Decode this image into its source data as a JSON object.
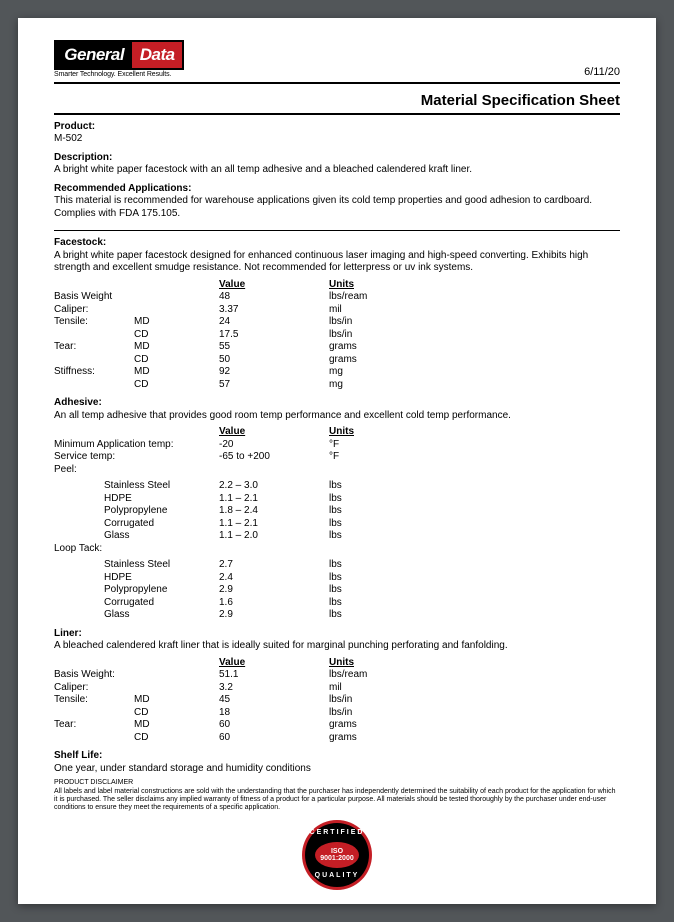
{
  "logo": {
    "left": "General",
    "right": "Data",
    "tagline": "Smarter Technology. Excellent Results."
  },
  "date": "6/11/20",
  "title": "Material Specification Sheet",
  "product": {
    "label": "Product:",
    "value": "M-502"
  },
  "description": {
    "label": "Description:",
    "text": "A bright white paper facestock with an all temp adhesive and a bleached calendered kraft liner."
  },
  "applications": {
    "label": "Recommended Applications:",
    "text": "This material is recommended for warehouse applications given its cold temp properties and good adhesion to cardboard. Complies with FDA 175.105."
  },
  "facestock": {
    "label": "Facestock:",
    "text": "A bright white paper facestock designed for enhanced continuous laser imaging and high-speed converting. Exhibits high strength and excellent smudge resistance. Not recommended for letterpress or uv ink systems.",
    "headers": {
      "value": "Value",
      "units": "Units"
    },
    "rows": [
      {
        "lbl": "Basis Weight",
        "sub": "",
        "val": "48",
        "unit": "lbs/ream"
      },
      {
        "lbl": "Caliper:",
        "sub": "",
        "val": "3.37",
        "unit": "mil"
      },
      {
        "lbl": "Tensile:",
        "sub": "MD",
        "val": "24",
        "unit": "lbs/in"
      },
      {
        "lbl": "",
        "sub": "CD",
        "val": "17.5",
        "unit": "lbs/in"
      },
      {
        "lbl": "Tear:",
        "sub": "MD",
        "val": "55",
        "unit": "grams"
      },
      {
        "lbl": "",
        "sub": "CD",
        "val": "50",
        "unit": "grams"
      },
      {
        "lbl": "Stiffness:",
        "sub": "MD",
        "val": "92",
        "unit": "mg"
      },
      {
        "lbl": "",
        "sub": "CD",
        "val": "57",
        "unit": "mg"
      }
    ]
  },
  "adhesive": {
    "label": "Adhesive:",
    "text": "An all temp adhesive that provides good room temp performance and excellent cold temp performance.",
    "headers": {
      "value": "Value",
      "units": "Units"
    },
    "rows": [
      {
        "lbl": "Minimum Application temp:",
        "val": "-20",
        "unit": "°F"
      },
      {
        "lbl": "Service temp:",
        "val": "-65 to +200",
        "unit": "°F"
      }
    ],
    "peel_label": "Peel:",
    "peel": [
      {
        "lbl": "Stainless Steel",
        "val": "2.2 – 3.0",
        "unit": "lbs"
      },
      {
        "lbl": "HDPE",
        "val": "1.1 – 2.1",
        "unit": "lbs"
      },
      {
        "lbl": "Polypropylene",
        "val": "1.8 – 2.4",
        "unit": "lbs"
      },
      {
        "lbl": "Corrugated",
        "val": "1.1 – 2.1",
        "unit": "lbs"
      },
      {
        "lbl": "Glass",
        "val": "1.1 – 2.0",
        "unit": "lbs"
      }
    ],
    "loop_label": "Loop Tack:",
    "loop": [
      {
        "lbl": "Stainless Steel",
        "val": "2.7",
        "unit": "lbs"
      },
      {
        "lbl": "HDPE",
        "val": "2.4",
        "unit": "lbs"
      },
      {
        "lbl": "Polypropylene",
        "val": "2.9",
        "unit": "lbs"
      },
      {
        "lbl": "Corrugated",
        "val": "1.6",
        "unit": "lbs"
      },
      {
        "lbl": "Glass",
        "val": "2.9",
        "unit": "lbs"
      }
    ]
  },
  "liner": {
    "label": "Liner:",
    "text": "A bleached calendered kraft liner that is ideally suited for marginal punching perforating and fanfolding.",
    "headers": {
      "value": "Value",
      "units": "Units"
    },
    "rows": [
      {
        "lbl": "Basis Weight:",
        "sub": "",
        "val": "51.1",
        "unit": "lbs/ream"
      },
      {
        "lbl": "Caliper:",
        "sub": "",
        "val": "3.2",
        "unit": "mil"
      },
      {
        "lbl": "Tensile:",
        "sub": "MD",
        "val": "45",
        "unit": "lbs/in"
      },
      {
        "lbl": "",
        "sub": "CD",
        "val": "18",
        "unit": "lbs/in"
      },
      {
        "lbl": "Tear:",
        "sub": "MD",
        "val": "60",
        "unit": "grams"
      },
      {
        "lbl": "",
        "sub": "CD",
        "val": "60",
        "unit": "grams"
      }
    ]
  },
  "shelf": {
    "label": "Shelf Life:",
    "text": "One year, under standard storage and humidity conditions"
  },
  "disclaimer": {
    "title": "PRODUCT DISCLAIMER",
    "text": "All labels and label material constructions are sold with the understanding that the purchaser has independently determined the suitability of each product for the application for which it is purchased. The seller disclaims any implied warranty of fitness of a product for a particular purpose. All materials should be tested thoroughly by the purchaser under end-user conditions to ensure they meet the requirements of a specific application."
  },
  "badge": {
    "top": "CERTIFIED",
    "center": "ISO 9001:2000",
    "bottom": "QUALITY"
  },
  "colors": {
    "red": "#c41e25",
    "black": "#000000",
    "page_bg": "#ffffff",
    "viewer_bg": "#525659"
  }
}
